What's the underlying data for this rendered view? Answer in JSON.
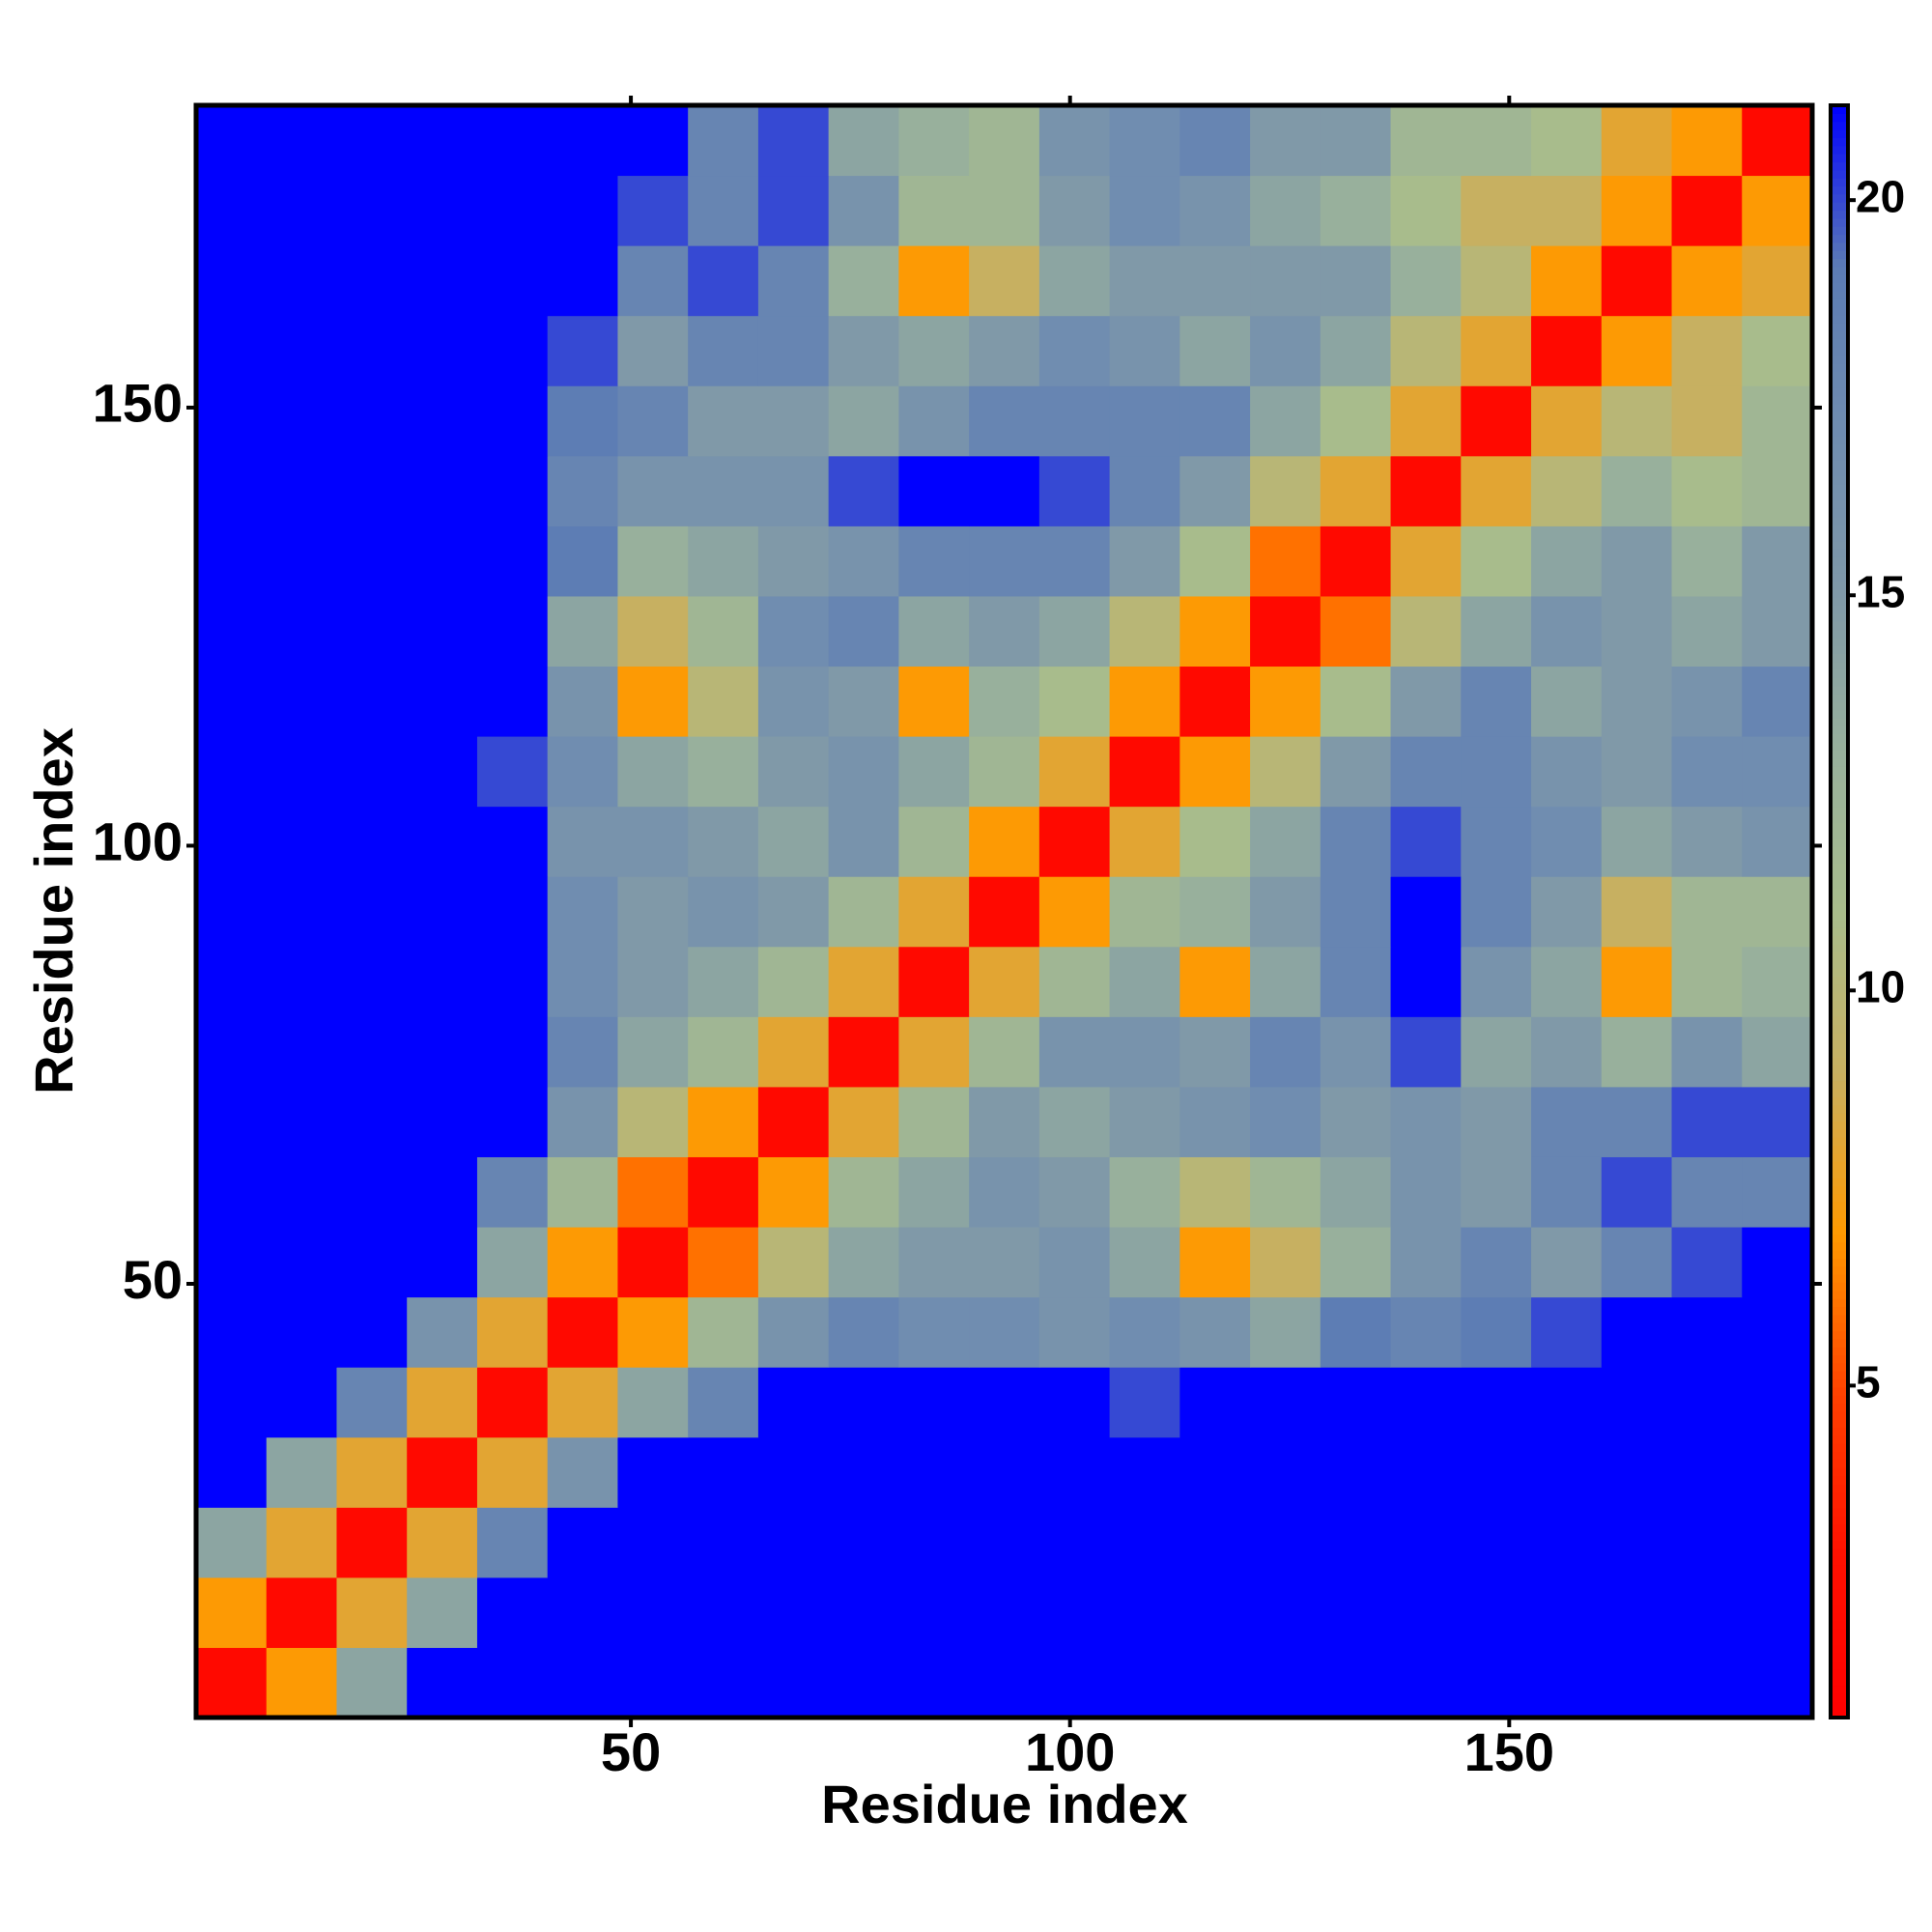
{
  "chart_data": {
    "type": "heatmap",
    "x_label": "Residue index",
    "y_label": "Residue index",
    "x_edges": [
      0.5,
      8.5,
      16.5,
      24.5,
      32.5,
      40.5,
      48.5,
      56.5,
      64.5,
      72.5,
      80.5,
      88.5,
      96.5,
      104.5,
      112.5,
      120.5,
      128.5,
      136.5,
      144.5,
      152.5,
      160.5,
      168.5,
      176.5,
      184.5
    ],
    "y_edges": [
      0.5,
      8.5,
      16.5,
      24.5,
      32.5,
      40.5,
      48.5,
      56.5,
      64.5,
      72.5,
      80.5,
      88.5,
      96.5,
      104.5,
      112.5,
      120.5,
      128.5,
      136.5,
      144.5,
      152.5,
      160.5,
      168.5,
      176.5,
      184.5
    ],
    "xlim": [
      0.5,
      184.5
    ],
    "ylim": [
      0.5,
      184.5
    ],
    "xticks": [
      50,
      100,
      150
    ],
    "yticks": [
      50,
      100,
      150
    ],
    "clim": [
      0.8,
      21.2
    ],
    "colorbar_ticks": [
      5,
      10,
      15,
      20
    ],
    "colorscale": [
      "#ff0000",
      "#ff1000",
      "#ff4000",
      "#ff9900",
      "#c8b060",
      "#a8bc8c",
      "#98b09c",
      "#7f98a8",
      "#6f8cb0",
      "#5c7cb4",
      "#0000ff"
    ],
    "z": [
      [
        2,
        7,
        14,
        25,
        25,
        25,
        25,
        25,
        25,
        25,
        25,
        25,
        25,
        25,
        25,
        25,
        25,
        25,
        25,
        25,
        25,
        25,
        25
      ],
      [
        7,
        2,
        8,
        14,
        25,
        25,
        25,
        25,
        25,
        25,
        25,
        25,
        25,
        25,
        25,
        25,
        25,
        25,
        25,
        25,
        25,
        25,
        25
      ],
      [
        14,
        8,
        2,
        8,
        18,
        25,
        25,
        25,
        25,
        25,
        25,
        25,
        25,
        25,
        25,
        25,
        25,
        25,
        25,
        25,
        25,
        25,
        25
      ],
      [
        25,
        14,
        8,
        2,
        8,
        16,
        25,
        25,
        25,
        25,
        25,
        25,
        25,
        25,
        25,
        25,
        25,
        25,
        25,
        25,
        25,
        25,
        25
      ],
      [
        25,
        25,
        18,
        8,
        2,
        8,
        14,
        18,
        25,
        25,
        25,
        25,
        25,
        20,
        25,
        25,
        25,
        25,
        25,
        25,
        25,
        25,
        25
      ],
      [
        25,
        25,
        25,
        16,
        8,
        2,
        7,
        12,
        16,
        18,
        17,
        17,
        16,
        17,
        16,
        14,
        19,
        18,
        19,
        20,
        25,
        25,
        25
      ],
      [
        25,
        25,
        25,
        25,
        14,
        7,
        2,
        6,
        10,
        14,
        15,
        15,
        16,
        14,
        7,
        9,
        13,
        16,
        18,
        15,
        18,
        20,
        25
      ],
      [
        25,
        25,
        25,
        25,
        18,
        12,
        6,
        2,
        7,
        12,
        14,
        16,
        15,
        13,
        10,
        12,
        14,
        16,
        15,
        18,
        20,
        18,
        18
      ],
      [
        25,
        25,
        25,
        25,
        25,
        16,
        10,
        7,
        2,
        8,
        12,
        15,
        14,
        15,
        16,
        17,
        15,
        16,
        15,
        18,
        18,
        20,
        20
      ],
      [
        25,
        25,
        25,
        25,
        25,
        18,
        14,
        12,
        8,
        2,
        8,
        12,
        16,
        16,
        15,
        18,
        16,
        20,
        14,
        15,
        13,
        16,
        14
      ],
      [
        25,
        25,
        25,
        25,
        25,
        17,
        15,
        14,
        12,
        8,
        2,
        8,
        12,
        14,
        7,
        14,
        18,
        22,
        16,
        14,
        7,
        12,
        13
      ],
      [
        25,
        25,
        25,
        25,
        25,
        17,
        15,
        16,
        15,
        12,
        8,
        2,
        7,
        12,
        13,
        15,
        18,
        22,
        18,
        15,
        9,
        12,
        12
      ],
      [
        25,
        25,
        25,
        25,
        25,
        16,
        16,
        15,
        14,
        16,
        12,
        7,
        2,
        8,
        11,
        14,
        18,
        20,
        18,
        17,
        14,
        15,
        16
      ],
      [
        25,
        25,
        25,
        25,
        20,
        17,
        14,
        13,
        15,
        16,
        14,
        12,
        8,
        2,
        7,
        10,
        15,
        18,
        18,
        16,
        15,
        17,
        17
      ],
      [
        25,
        25,
        25,
        25,
        25,
        16,
        7,
        10,
        16,
        15,
        7,
        13,
        11,
        7,
        2,
        7,
        11,
        15,
        18,
        14,
        15,
        16,
        18
      ],
      [
        25,
        25,
        25,
        25,
        25,
        14,
        9,
        12,
        17,
        18,
        14,
        15,
        14,
        10,
        7,
        2,
        6,
        10,
        14,
        16,
        15,
        14,
        15
      ],
      [
        25,
        25,
        25,
        25,
        25,
        19,
        13,
        14,
        15,
        16,
        18,
        18,
        18,
        15,
        11,
        6,
        2,
        8,
        11,
        14,
        15,
        13,
        15
      ],
      [
        25,
        25,
        25,
        25,
        25,
        18,
        16,
        16,
        16,
        20,
        22,
        22,
        20,
        18,
        15,
        10,
        8,
        2,
        8,
        10,
        13,
        11,
        12
      ],
      [
        25,
        25,
        25,
        25,
        25,
        19,
        18,
        15,
        15,
        14,
        16,
        18,
        18,
        18,
        18,
        14,
        11,
        8,
        2,
        8,
        10,
        9,
        12
      ],
      [
        25,
        25,
        25,
        25,
        25,
        20,
        15,
        18,
        18,
        15,
        14,
        15,
        17,
        16,
        14,
        16,
        14,
        10,
        8,
        2,
        7,
        9,
        11
      ],
      [
        25,
        25,
        25,
        25,
        25,
        25,
        18,
        20,
        18,
        13,
        7,
        9,
        14,
        15,
        15,
        15,
        15,
        13,
        10,
        7,
        2,
        7,
        8
      ],
      [
        25,
        25,
        25,
        25,
        25,
        25,
        20,
        18,
        20,
        16,
        12,
        12,
        15,
        17,
        16,
        14,
        13,
        11,
        9,
        9,
        7,
        2,
        7
      ],
      [
        25,
        25,
        25,
        25,
        25,
        25,
        25,
        18,
        20,
        14,
        13,
        12,
        16,
        17,
        18,
        15,
        15,
        12,
        12,
        11,
        8,
        7,
        2
      ]
    ]
  }
}
